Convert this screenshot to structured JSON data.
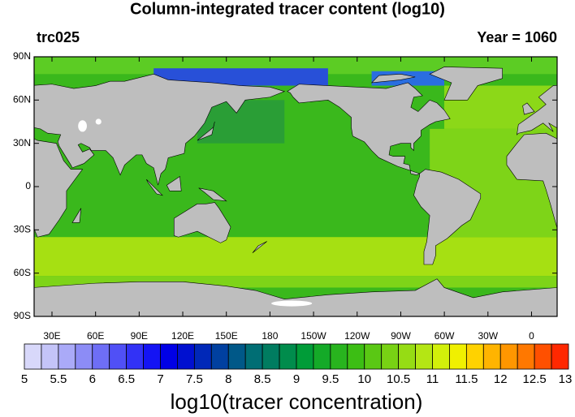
{
  "title": "Column-integrated tracer content (log10)",
  "left_label": "trc025",
  "right_label": "Year = 1060",
  "lat_ticks": [
    "90N",
    "60N",
    "30N",
    "0",
    "30S",
    "60S",
    "90S"
  ],
  "lon_ticks": [
    "30E",
    "60E",
    "90E",
    "120E",
    "150E",
    "180",
    "150W",
    "120W",
    "90W",
    "60W",
    "30W",
    "0"
  ],
  "colorbar": {
    "title": "log10(tracer concentration)",
    "labels": [
      5,
      5.5,
      6,
      6.5,
      7,
      7.5,
      8,
      8.5,
      9,
      9.5,
      10,
      10.5,
      11,
      11.5,
      12,
      12.5,
      13
    ],
    "colors": [
      "#d8d8fa",
      "#c4c4f8",
      "#aaaaf8",
      "#8c8cf6",
      "#6e6ef6",
      "#5050f6",
      "#3232f6",
      "#1414f4",
      "#0000e6",
      "#0010d0",
      "#0028b8",
      "#0040a0",
      "#005888",
      "#006e74",
      "#007c60",
      "#008c4c",
      "#009c38",
      "#14aa28",
      "#28b41e",
      "#3cbe14",
      "#5ac814",
      "#78d214",
      "#96dc14",
      "#b4e614",
      "#d2f00a",
      "#f0f000",
      "#ffd200",
      "#ffb400",
      "#ff9600",
      "#ff7800",
      "#ff5000",
      "#ff2800"
    ]
  }
}
